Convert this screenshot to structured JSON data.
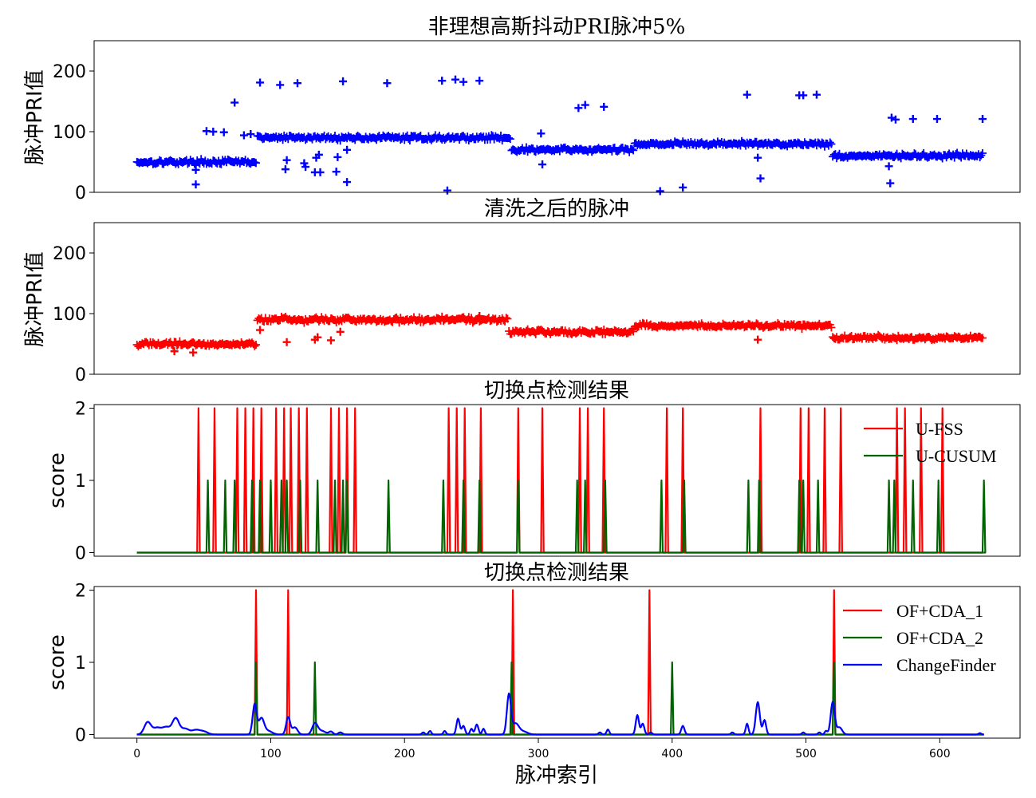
{
  "chart_data": [
    {
      "type": "scatter",
      "title": "非理想高斯抖动PRI脉冲5%",
      "ylabel": "脉冲PRI值",
      "xlim": [
        -32,
        660
      ],
      "ylim": [
        0,
        250
      ],
      "yticks": [
        0,
        100,
        200
      ],
      "marker": "+",
      "color": "#0000ff",
      "segments": [
        {
          "x_start": 0,
          "x_end": 90,
          "level": 50,
          "jitter": 3
        },
        {
          "x_start": 90,
          "x_end": 280,
          "level": 90,
          "jitter": 3
        },
        {
          "x_start": 280,
          "x_end": 372,
          "level": 70,
          "jitter": 3
        },
        {
          "x_start": 372,
          "x_end": 520,
          "level": 80,
          "jitter": 3
        },
        {
          "x_start": 520,
          "x_end": 633,
          "level": 60,
          "jitter": 3
        }
      ],
      "outliers": [
        [
          44,
          13
        ],
        [
          44,
          37
        ],
        [
          52,
          101
        ],
        [
          57,
          100
        ],
        [
          65,
          99
        ],
        [
          73,
          148
        ],
        [
          80,
          94
        ],
        [
          85,
          96
        ],
        [
          92,
          181
        ],
        [
          107,
          177
        ],
        [
          111,
          38
        ],
        [
          112,
          53
        ],
        [
          120,
          180
        ],
        [
          125,
          48
        ],
        [
          126,
          42
        ],
        [
          133,
          33
        ],
        [
          134,
          57
        ],
        [
          136,
          62
        ],
        [
          137,
          33
        ],
        [
          149,
          34
        ],
        [
          150,
          58
        ],
        [
          154,
          183
        ],
        [
          157,
          17
        ],
        [
          157,
          70
        ],
        [
          187,
          180
        ],
        [
          228,
          184
        ],
        [
          232,
          3
        ],
        [
          238,
          186
        ],
        [
          244,
          182
        ],
        [
          256,
          184
        ],
        [
          302,
          97
        ],
        [
          303,
          46
        ],
        [
          330,
          139
        ],
        [
          335,
          144
        ],
        [
          349,
          141
        ],
        [
          391,
          2
        ],
        [
          408,
          8
        ],
        [
          456,
          161
        ],
        [
          464,
          57
        ],
        [
          466,
          23
        ],
        [
          495,
          160
        ],
        [
          498,
          160
        ],
        [
          508,
          161
        ],
        [
          562,
          43
        ],
        [
          563,
          15
        ],
        [
          564,
          123
        ],
        [
          567,
          120
        ],
        [
          580,
          121
        ],
        [
          598,
          121
        ],
        [
          632,
          121
        ]
      ]
    },
    {
      "type": "scatter",
      "title": "清洗之后的脉冲",
      "ylabel": "脉冲PRI值",
      "xlim": [
        -32,
        660
      ],
      "ylim": [
        0,
        250
      ],
      "yticks": [
        0,
        100,
        200
      ],
      "marker": "+",
      "color": "#ff0000",
      "segments": [
        {
          "x_start": 0,
          "x_end": 90,
          "level": 50,
          "jitter": 3
        },
        {
          "x_start": 90,
          "x_end": 278,
          "level": 90,
          "jitter": 3
        },
        {
          "x_start": 278,
          "x_end": 372,
          "level": 70,
          "jitter": 3
        },
        {
          "x_start": 372,
          "x_end": 520,
          "level": 80,
          "jitter": 3
        },
        {
          "x_start": 520,
          "x_end": 633,
          "level": 60,
          "jitter": 3
        }
      ],
      "outliers": [
        [
          28,
          38
        ],
        [
          42,
          36
        ],
        [
          92,
          73
        ],
        [
          112,
          53
        ],
        [
          133,
          57
        ],
        [
          135,
          61
        ],
        [
          145,
          56
        ],
        [
          152,
          70
        ],
        [
          244,
          94
        ],
        [
          256,
          96
        ],
        [
          464,
          57
        ]
      ]
    },
    {
      "type": "line",
      "title": "切换点检测结果",
      "ylabel": "score",
      "xlim": [
        -32,
        660
      ],
      "ylim": [
        -0.05,
        2.05
      ],
      "yticks": [
        0,
        1,
        2
      ],
      "legend_position": "top-right",
      "x_end": 633,
      "series": [
        {
          "name": "U-FSS",
          "color": "#ff0000",
          "spike_value": 2,
          "spikes": [
            46,
            58,
            75,
            81,
            87,
            93,
            104,
            110,
            115,
            121,
            127,
            145,
            151,
            157,
            163,
            233,
            239,
            245,
            257,
            285,
            303,
            331,
            337,
            349,
            396,
            408,
            466,
            496,
            502,
            514,
            526,
            568,
            574,
            586,
            602
          ]
        },
        {
          "name": "U-CUSUM",
          "color": "#006400",
          "spike_value": 1,
          "spikes": [
            53,
            66,
            73,
            86,
            92,
            100,
            108,
            112,
            122,
            135,
            148,
            154,
            157,
            188,
            229,
            244,
            256,
            285,
            329,
            335,
            350,
            392,
            409,
            457,
            465,
            495,
            498,
            509,
            562,
            566,
            580,
            599,
            633
          ]
        }
      ]
    },
    {
      "type": "line",
      "title": "切换点检测结果",
      "ylabel": "score",
      "xlabel": "脉冲索引",
      "xlim": [
        -32,
        660
      ],
      "ylim": [
        -0.05,
        2.05
      ],
      "yticks": [
        0,
        1,
        2
      ],
      "xticks": [
        0,
        100,
        200,
        300,
        400,
        500,
        600
      ],
      "legend_position": "top-right",
      "x_end": 633,
      "series": [
        {
          "name": "OF+CDA_1",
          "color": "#ff0000",
          "spike_value": 2,
          "spikes": [
            89,
            113,
            281,
            383,
            521
          ]
        },
        {
          "name": "OF+CDA_2",
          "color": "#006400",
          "spike_value": 1,
          "spikes": [
            89,
            133,
            280,
            400,
            521
          ]
        },
        {
          "name": "ChangeFinder",
          "color": "#0000ff",
          "bumps": [
            [
              8,
              0.17,
              2.5
            ],
            [
              15,
              0.09,
              3
            ],
            [
              22,
              0.1,
              3
            ],
            [
              29,
              0.22,
              2.5
            ],
            [
              36,
              0.08,
              3
            ],
            [
              44,
              0.06,
              3
            ],
            [
              50,
              0.04,
              3
            ],
            [
              88,
              0.42,
              1.5
            ],
            [
              93,
              0.22,
              2
            ],
            [
              98,
              0.05,
              3
            ],
            [
              113,
              0.24,
              1.5
            ],
            [
              118,
              0.1,
              2
            ],
            [
              133,
              0.15,
              2
            ],
            [
              138,
              0.05,
              3
            ],
            [
              145,
              0.04,
              1.5
            ],
            [
              152,
              0.03,
              1.5
            ],
            [
              214,
              0.03,
              1
            ],
            [
              219,
              0.05,
              1
            ],
            [
              230,
              0.05,
              1
            ],
            [
              240,
              0.22,
              1.2
            ],
            [
              244,
              0.12,
              1.2
            ],
            [
              250,
              0.08,
              1
            ],
            [
              254,
              0.14,
              1.2
            ],
            [
              259,
              0.08,
              1
            ],
            [
              278,
              0.55,
              1.5
            ],
            [
              283,
              0.15,
              2.5
            ],
            [
              289,
              0.04,
              3
            ],
            [
              346,
              0.03,
              1
            ],
            [
              352,
              0.07,
              1
            ],
            [
              374,
              0.27,
              1.2
            ],
            [
              378,
              0.15,
              1.2
            ],
            [
              384,
              0.03,
              1
            ],
            [
              408,
              0.12,
              1.2
            ],
            [
              445,
              0.03,
              1
            ],
            [
              456,
              0.15,
              1
            ],
            [
              464,
              0.45,
              1.5
            ],
            [
              469,
              0.2,
              1.2
            ],
            [
              498,
              0.03,
              1
            ],
            [
              510,
              0.03,
              1
            ],
            [
              515,
              0.05,
              1
            ],
            [
              520,
              0.45,
              1.5
            ],
            [
              525,
              0.1,
              2
            ],
            [
              630,
              0.02,
              1
            ]
          ]
        }
      ]
    }
  ]
}
